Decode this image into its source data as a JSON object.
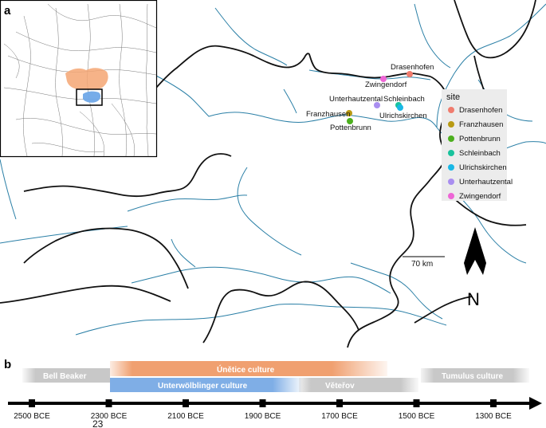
{
  "panels": {
    "a": "a",
    "b": "b"
  },
  "legend": {
    "title": "site",
    "items": [
      {
        "name": "Drasenhofen",
        "color": "#f07c6e"
      },
      {
        "name": "Franzhausen",
        "color": "#b89a13"
      },
      {
        "name": "Pottenbrunn",
        "color": "#4caf1e"
      },
      {
        "name": "Schleinbach",
        "color": "#18c29c"
      },
      {
        "name": "Ulrichskirchen",
        "color": "#19b8e6"
      },
      {
        "name": "Unterhautzental",
        "color": "#a98ef0"
      },
      {
        "name": "Zwingendorf",
        "color": "#ee66d6"
      }
    ]
  },
  "sites": [
    {
      "name": "Drasenhofen",
      "label": "Drasenhofen"
    },
    {
      "name": "Zwingendorf",
      "label": "Zwingendorf"
    },
    {
      "name": "Unterhautzental",
      "label": "Unterhautzental"
    },
    {
      "name": "Schleinbach",
      "label": "Schleinbach"
    },
    {
      "name": "Franzhausen",
      "label": "Franzhausen"
    },
    {
      "name": "Ulrichskirchen",
      "label": "Ulrichskirchen"
    },
    {
      "name": "Pottenbrunn",
      "label": "Pottenbrunn"
    }
  ],
  "scale_bar": {
    "label": "70 km"
  },
  "north_arrow": {
    "label": "N"
  },
  "timeline": {
    "ticks": [
      "2500 BCE",
      "2300 BCE",
      "2100 BCE",
      "1900 BCE",
      "1700 BCE",
      "1500 BCE",
      "1300 BCE"
    ],
    "extra_label": "23",
    "cultures": [
      {
        "name": "Bell Beaker",
        "color": "#c8c8c8"
      },
      {
        "name": "Únětice culture",
        "color": "#f0a070"
      },
      {
        "name": "Unterwölblinger culture",
        "color": "#7faee6"
      },
      {
        "name": "Věteřov",
        "color": "#c8c8c8"
      },
      {
        "name": "Tumulus culture",
        "color": "#c8c8c8"
      }
    ]
  },
  "inset": {
    "highlight_orange": "#f5a673",
    "highlight_blue": "#6fa8e8"
  }
}
